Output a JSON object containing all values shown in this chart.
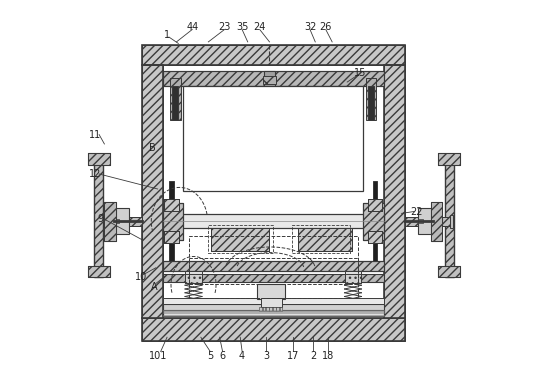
{
  "bg_color": "#ffffff",
  "lc": "#3a3a3a",
  "figsize": [
    5.48,
    3.78
  ],
  "dpi": 100,
  "label_fs": 7.0,
  "ox": 0.148,
  "oy": 0.095,
  "ow": 0.7,
  "oh": 0.79
}
